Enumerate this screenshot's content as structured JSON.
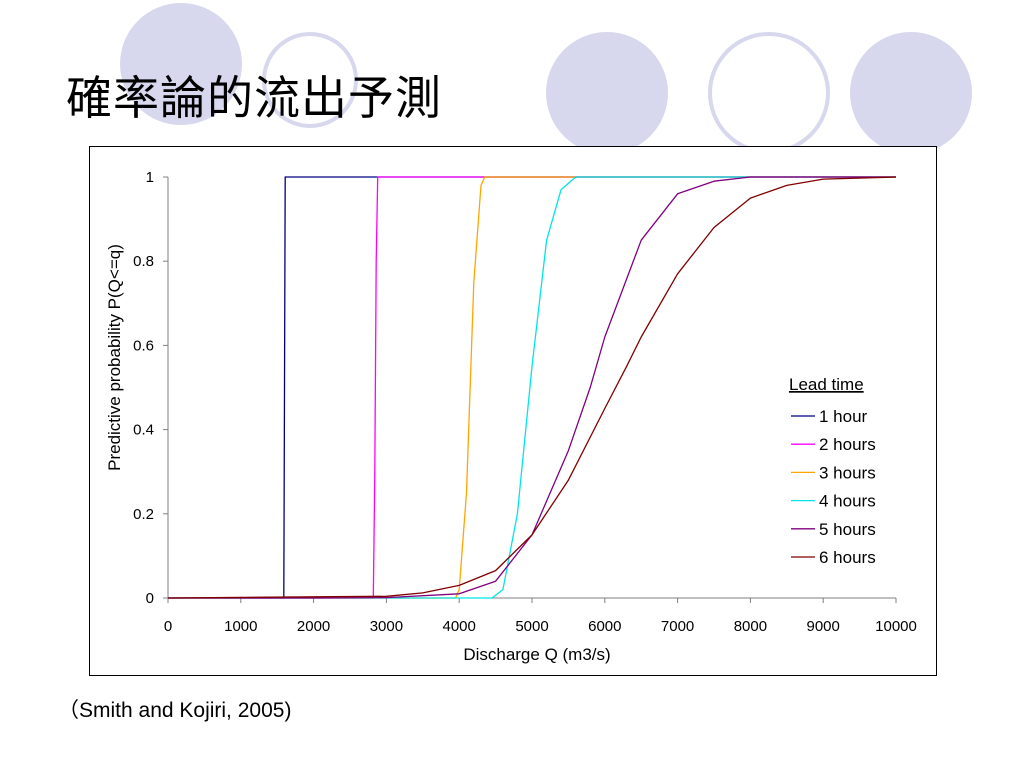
{
  "slide": {
    "title": "確率論的流出予測",
    "citation": "（Smith and Kojiri, 2005)"
  },
  "chart_data": {
    "type": "line",
    "title": "",
    "xlabel": "Discharge Q (m3/s)",
    "ylabel": "Predictive probability P(Q<=q)",
    "xlim": [
      0,
      10000
    ],
    "ylim": [
      0,
      1
    ],
    "x_ticks": [
      0,
      1000,
      2000,
      3000,
      4000,
      5000,
      6000,
      7000,
      8000,
      9000,
      10000
    ],
    "y_ticks": [
      0,
      0.2,
      0.4,
      0.6,
      0.8,
      1
    ],
    "y_tick_labels": [
      "0",
      "0.2",
      "0.4",
      "0.6",
      "0.8",
      "1"
    ],
    "grid": false,
    "legend": {
      "title": "Lead time",
      "placement": "right"
    },
    "series": [
      {
        "name": "1 hour",
        "color": "#000080",
        "points": [
          [
            0,
            0
          ],
          [
            1590,
            0
          ],
          [
            1600,
            0.5
          ],
          [
            1610,
            1
          ],
          [
            10000,
            1
          ]
        ]
      },
      {
        "name": "2 hours",
        "color": "#ff00ff",
        "points": [
          [
            0,
            0
          ],
          [
            2820,
            0
          ],
          [
            2840,
            0.3
          ],
          [
            2860,
            0.8
          ],
          [
            2880,
            1
          ],
          [
            10000,
            1
          ]
        ]
      },
      {
        "name": "3 hours",
        "color": "#ffa500",
        "points": [
          [
            0,
            0
          ],
          [
            3950,
            0
          ],
          [
            4000,
            0.02
          ],
          [
            4100,
            0.25
          ],
          [
            4200,
            0.75
          ],
          [
            4300,
            0.98
          ],
          [
            4350,
            1
          ],
          [
            10000,
            1
          ]
        ]
      },
      {
        "name": "4 hours",
        "color": "#00e5e5",
        "points": [
          [
            0,
            0
          ],
          [
            4450,
            0
          ],
          [
            4600,
            0.02
          ],
          [
            4800,
            0.2
          ],
          [
            5000,
            0.55
          ],
          [
            5200,
            0.85
          ],
          [
            5400,
            0.97
          ],
          [
            5600,
            1
          ],
          [
            10000,
            1
          ]
        ]
      },
      {
        "name": "5 hours",
        "color": "#800080",
        "points": [
          [
            0,
            0
          ],
          [
            2000,
            0
          ],
          [
            3000,
            0.001
          ],
          [
            4000,
            0.01
          ],
          [
            4500,
            0.04
          ],
          [
            5000,
            0.15
          ],
          [
            5500,
            0.35
          ],
          [
            5800,
            0.5
          ],
          [
            6000,
            0.62
          ],
          [
            6500,
            0.85
          ],
          [
            7000,
            0.96
          ],
          [
            7500,
            0.99
          ],
          [
            8000,
            1
          ],
          [
            10000,
            1
          ]
        ]
      },
      {
        "name": "6 hours",
        "color": "#800000",
        "points": [
          [
            0,
            0
          ],
          [
            3000,
            0.004
          ],
          [
            3500,
            0.012
          ],
          [
            4000,
            0.03
          ],
          [
            4500,
            0.065
          ],
          [
            5000,
            0.15
          ],
          [
            5500,
            0.28
          ],
          [
            6000,
            0.45
          ],
          [
            6300,
            0.55
          ],
          [
            6500,
            0.62
          ],
          [
            7000,
            0.77
          ],
          [
            7500,
            0.88
          ],
          [
            8000,
            0.95
          ],
          [
            8500,
            0.98
          ],
          [
            9000,
            0.995
          ],
          [
            10000,
            1
          ]
        ]
      }
    ]
  }
}
